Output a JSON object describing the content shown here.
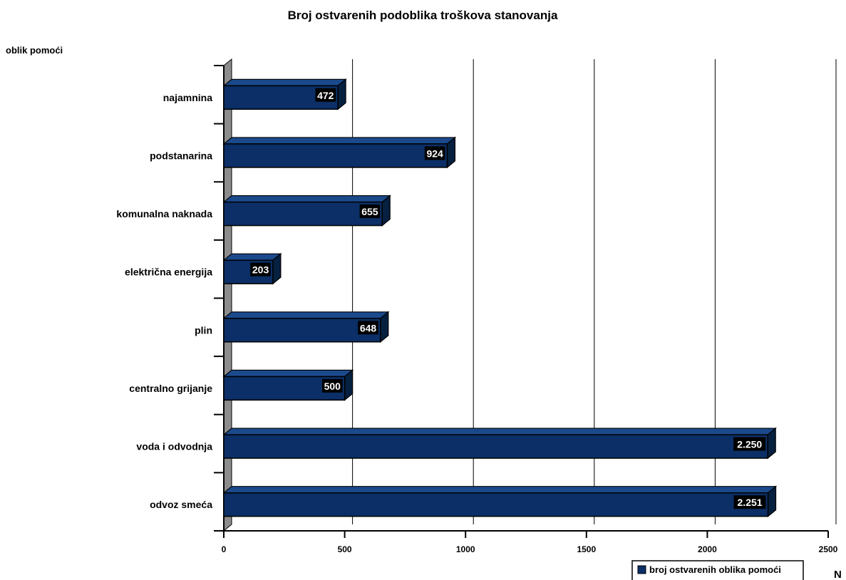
{
  "chart_data": {
    "type": "bar",
    "orientation": "horizontal",
    "title": "Broj ostvarenih podoblika troškova stanovanja",
    "ylabel": "oblik pomoći",
    "xlabel": "N",
    "categories": [
      "najamnina",
      "podstanarina",
      "komunalna naknada",
      "električna energija",
      "plin",
      "centralno grijanje",
      "voda i odvodnja",
      "odvoz smeća"
    ],
    "values": [
      472,
      924,
      655,
      203,
      648,
      500,
      2250,
      2251
    ],
    "value_labels": [
      "472",
      "924",
      "655",
      "203",
      "648",
      "500",
      "2.250",
      "2.251"
    ],
    "xlim": [
      0,
      2500
    ],
    "x_ticks": [
      "0",
      "500",
      "1000",
      "1500",
      "2000",
      "2500"
    ],
    "grid": "vertical",
    "legend": {
      "position": "bottom-right",
      "entries": [
        "broj ostvarenih oblika pomoći"
      ]
    },
    "colors": {
      "bar": "#0b2f66",
      "bar_top": "#1b4a8c",
      "bar_side": "#06203f",
      "label_bg": "#000000",
      "wall": "#8c8c8c"
    }
  }
}
